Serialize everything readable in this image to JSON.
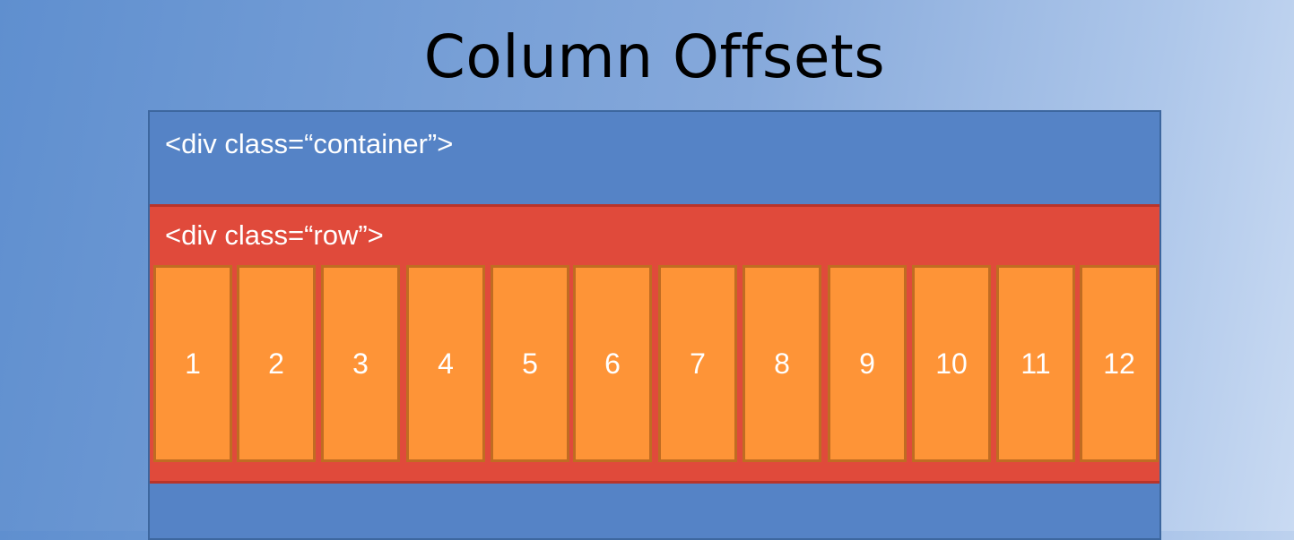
{
  "slide": {
    "title": "Column Offsets"
  },
  "container": {
    "label": "<div class=“container”>"
  },
  "row": {
    "label": "<div class=“row”>"
  },
  "columns": [
    "1",
    "2",
    "3",
    "4",
    "5",
    "6",
    "7",
    "8",
    "9",
    "10",
    "11",
    "12"
  ],
  "colors": {
    "background": "#6f9ad4",
    "container": "#5583c6",
    "row": "#e04a3b",
    "column": "#fe9437",
    "column_border": "#c06c22"
  }
}
